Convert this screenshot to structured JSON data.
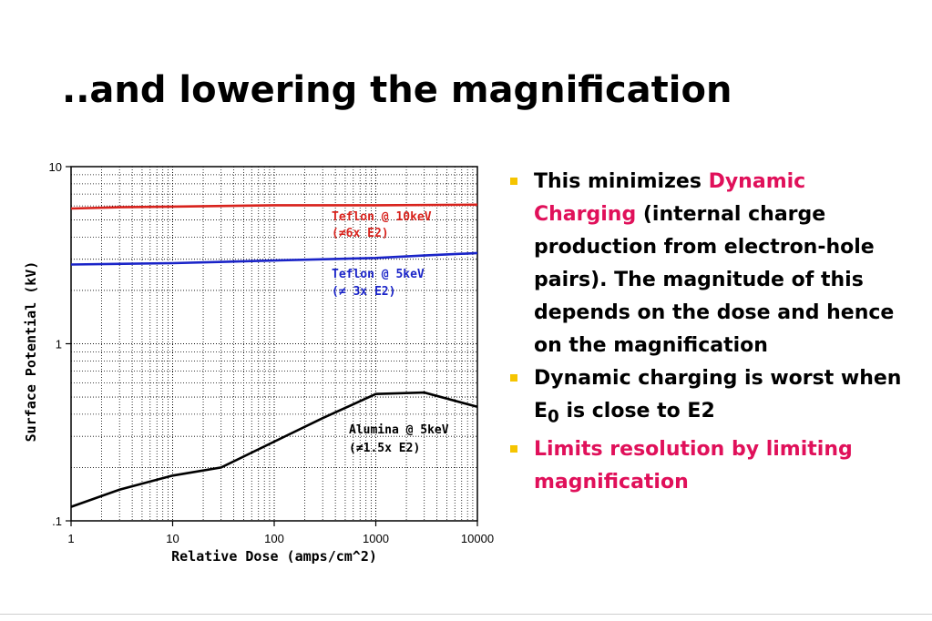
{
  "slide": {
    "title": "..and lowering the magnification"
  },
  "bullets": [
    {
      "parts": [
        {
          "text": "This minimizes "
        },
        {
          "text": "Dynamic Charging",
          "highlight": true
        },
        {
          "text": " (internal charge production from electron-hole pairs). The magnitude of this depends on the dose and hence on the magnification"
        }
      ]
    },
    {
      "parts": [
        {
          "text": "Dynamic charging is worst when E"
        },
        {
          "text": "0",
          "sub": true
        },
        {
          "text": " is close to E2"
        }
      ]
    },
    {
      "parts": [
        {
          "text": "Limits resolution by limiting magnification",
          "highlight": true
        }
      ]
    }
  ],
  "colors": {
    "accent": "#e0105a",
    "bullet_marker": "#f5c400",
    "series_red": "#d8221c",
    "series_blue": "#1a24c8",
    "series_black": "#000000"
  },
  "chart_data": {
    "type": "line",
    "title": "",
    "xlabel": "Relative Dose (amps/cm^2)",
    "ylabel": "Surface Potential (kV)",
    "xscale": "log",
    "yscale": "log",
    "xlim": [
      1,
      10000
    ],
    "ylim": [
      0.1,
      10
    ],
    "grid": true,
    "x_ticks": [
      "1",
      "10",
      "100",
      "1000",
      "10000"
    ],
    "y_ticks": [
      ".1",
      "1",
      "10"
    ],
    "series": [
      {
        "name": "Teflon @ 10keV",
        "note": "(≠6x E2)",
        "color": "#d8221c",
        "x": [
          1,
          3,
          10,
          100,
          1000,
          10000
        ],
        "y": [
          5.8,
          5.9,
          5.95,
          6.05,
          6.05,
          6.1
        ]
      },
      {
        "name": "Teflon @ 5keV",
        "note": "(≠ 3x E2)",
        "color": "#1a24c8",
        "x": [
          1,
          10,
          100,
          1000,
          3000,
          10000
        ],
        "y": [
          2.8,
          2.85,
          2.95,
          3.05,
          3.15,
          3.25
        ]
      },
      {
        "name": "Alumina @ 5keV",
        "note": "(≠1.5x E2)",
        "color": "#000000",
        "x": [
          1,
          3,
          10,
          30,
          100,
          300,
          1000,
          3000,
          10000
        ],
        "y": [
          0.12,
          0.15,
          0.18,
          0.2,
          0.28,
          0.38,
          0.52,
          0.53,
          0.44
        ]
      }
    ]
  }
}
